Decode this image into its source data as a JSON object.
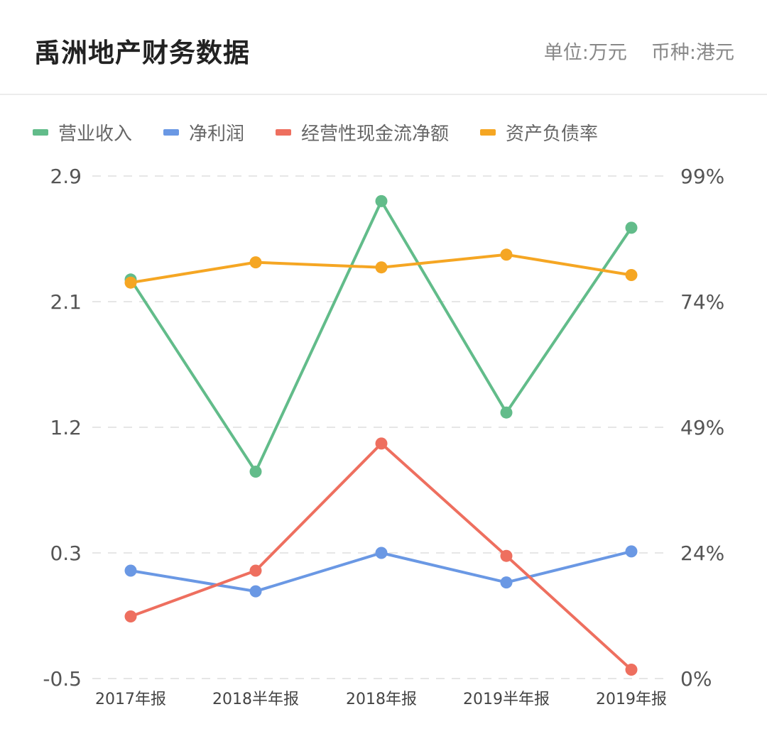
{
  "header": {
    "title": "禹洲地产财务数据",
    "unit": "单位:万元",
    "currency": "币种:港元"
  },
  "chart_data": {
    "type": "line",
    "categories": [
      "2017年报",
      "2018半年报",
      "2018年报",
      "2019半年报",
      "2019年报"
    ],
    "left_axis": {
      "ticks": [
        "2.9",
        "2.1",
        "1.2",
        "0.3",
        "-0.5"
      ],
      "range": [
        -0.5,
        2.9
      ]
    },
    "right_axis": {
      "ticks": [
        "99%",
        "74%",
        "49%",
        "24%",
        "0%"
      ],
      "range": [
        0,
        99
      ]
    },
    "grid": true,
    "legend_position": "top-left",
    "series": [
      {
        "name": "营业收入",
        "color": "#62bc8a",
        "axis": "left",
        "values": [
          2.2,
          0.9,
          2.73,
          1.3,
          2.55
        ]
      },
      {
        "name": "净利润",
        "color": "#6a98e4",
        "axis": "left",
        "values": [
          0.23,
          0.09,
          0.35,
          0.15,
          0.36
        ]
      },
      {
        "name": "经营性现金流净额",
        "color": "#ee6f5f",
        "axis": "left",
        "values": [
          -0.08,
          0.23,
          1.09,
          0.33,
          -0.44
        ]
      },
      {
        "name": "资产负债率",
        "color": "#f5a623",
        "axis": "right",
        "values": [
          78,
          82,
          81,
          83.5,
          79.5
        ]
      }
    ]
  }
}
